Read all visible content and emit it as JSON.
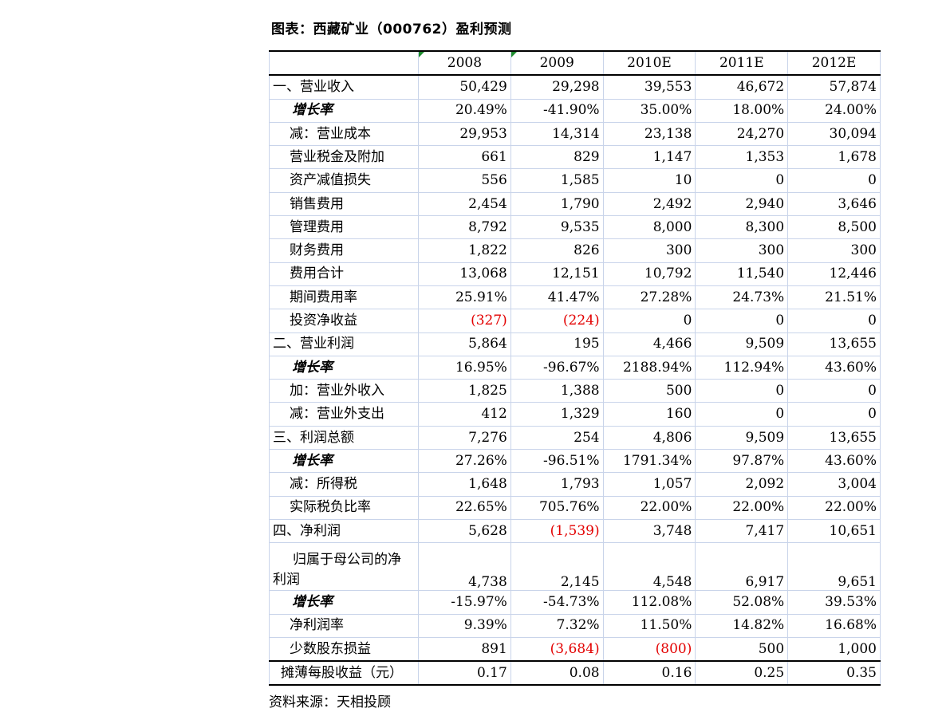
{
  "title": "图表：西藏矿业（000762）盈利预测",
  "source": "资料来源：天相投顾",
  "table": {
    "columns": [
      "2008",
      "2009",
      "2010E",
      "2011E",
      "2012E"
    ],
    "rows": [
      {
        "label": "一、营业收入",
        "style": "section",
        "values": [
          "50,429",
          "29,298",
          "39,553",
          "46,672",
          "57,874"
        ]
      },
      {
        "label": "增长率",
        "style": "bold-italic",
        "values": [
          "20.49%",
          "-41.90%",
          "35.00%",
          "18.00%",
          "24.00%"
        ]
      },
      {
        "label": "减：营业成本",
        "style": "indent",
        "values": [
          "29,953",
          "14,314",
          "23,138",
          "24,270",
          "30,094"
        ]
      },
      {
        "label": "营业税金及附加",
        "style": "indent",
        "values": [
          "661",
          "829",
          "1,147",
          "1,353",
          "1,678"
        ]
      },
      {
        "label": "资产减值损失",
        "style": "indent",
        "values": [
          "556",
          "1,585",
          "10",
          "0",
          "0"
        ]
      },
      {
        "label": "销售费用",
        "style": "indent",
        "values": [
          "2,454",
          "1,790",
          "2,492",
          "2,940",
          "3,646"
        ]
      },
      {
        "label": "管理费用",
        "style": "indent",
        "values": [
          "8,792",
          "9,535",
          "8,000",
          "8,300",
          "8,500"
        ]
      },
      {
        "label": "财务费用",
        "style": "indent",
        "values": [
          "1,822",
          "826",
          "300",
          "300",
          "300"
        ]
      },
      {
        "label": "费用合计",
        "style": "indent",
        "values": [
          "13,068",
          "12,151",
          "10,792",
          "11,540",
          "12,446"
        ]
      },
      {
        "label": "期间费用率",
        "style": "indent",
        "values": [
          "25.91%",
          "41.47%",
          "27.28%",
          "24.73%",
          "21.51%"
        ]
      },
      {
        "label": "投资净收益",
        "style": "indent",
        "values": [
          "(327)",
          "(224)",
          "0",
          "0",
          "0"
        ]
      },
      {
        "label": "二、营业利润",
        "style": "section",
        "values": [
          "5,864",
          "195",
          "4,466",
          "9,509",
          "13,655"
        ]
      },
      {
        "label": "增长率",
        "style": "bold-italic",
        "values": [
          "16.95%",
          "-96.67%",
          "2188.94%",
          "112.94%",
          "43.60%"
        ]
      },
      {
        "label": "加：营业外收入",
        "style": "indent",
        "values": [
          "1,825",
          "1,388",
          "500",
          "0",
          "0"
        ]
      },
      {
        "label": "减：营业外支出",
        "style": "indent",
        "values": [
          "412",
          "1,329",
          "160",
          "0",
          "0"
        ]
      },
      {
        "label": "三、利润总额",
        "style": "section",
        "values": [
          "7,276",
          "254",
          "4,806",
          "9,509",
          "13,655"
        ]
      },
      {
        "label": "增长率",
        "style": "bold-italic",
        "values": [
          "27.26%",
          "-96.51%",
          "1791.34%",
          "97.87%",
          "43.60%"
        ]
      },
      {
        "label": "减：所得税",
        "style": "indent",
        "values": [
          "1,648",
          "1,793",
          "1,057",
          "2,092",
          "3,004"
        ]
      },
      {
        "label": "实际税负比率",
        "style": "indent",
        "values": [
          "22.65%",
          "705.76%",
          "22.00%",
          "22.00%",
          "22.00%"
        ]
      },
      {
        "label": "四、净利润",
        "style": "section",
        "values": [
          "5,628",
          "(1,539)",
          "3,748",
          "7,417",
          "10,651"
        ]
      },
      {
        "label_line1": "归属于母公司的净",
        "label_line2": "利润",
        "style": "tall",
        "values": [
          "4,738",
          "2,145",
          "4,548",
          "6,917",
          "9,651"
        ]
      },
      {
        "label": "增长率",
        "style": "bold-italic",
        "values": [
          "-15.97%",
          "-54.73%",
          "112.08%",
          "52.08%",
          "39.53%"
        ]
      },
      {
        "label": "净利润率",
        "style": "indent",
        "values": [
          "9.39%",
          "7.32%",
          "11.50%",
          "14.82%",
          "16.68%"
        ]
      },
      {
        "label": "少数股东损益",
        "style": "indent",
        "values": [
          "891",
          "(3,684)",
          "(800)",
          "500",
          "1,000"
        ]
      },
      {
        "label": "摊薄每股收益（元）",
        "style": "last",
        "values": [
          "0.17",
          "0.08",
          "0.16",
          "0.25",
          "0.35"
        ]
      }
    ]
  },
  "colors": {
    "negative_text": "#e30000",
    "grid_line": "#c9d4ea",
    "flag_marker": "#1e8c2e"
  }
}
